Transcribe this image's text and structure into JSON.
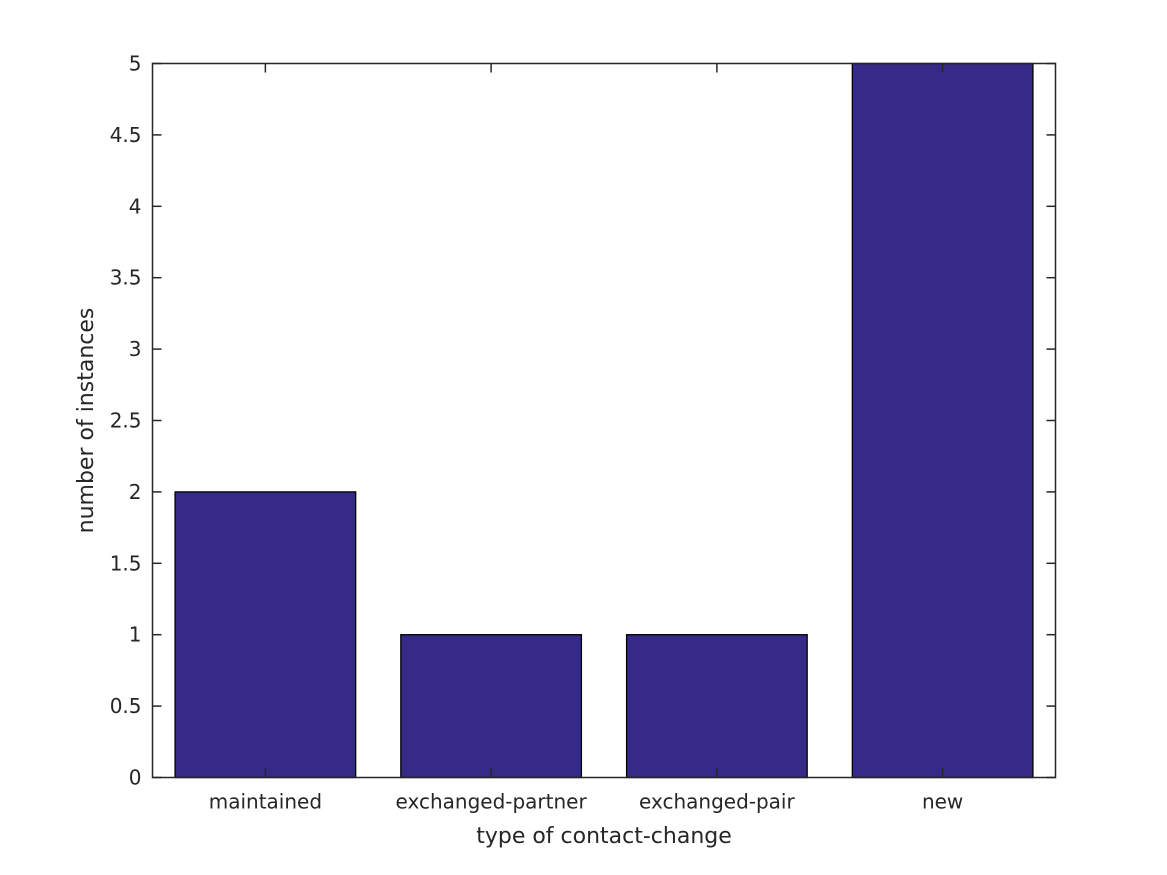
{
  "chart_data": {
    "type": "bar",
    "categories": [
      "maintained",
      "exchanged-partner",
      "exchanged-pair",
      "new"
    ],
    "values": [
      2,
      1,
      1,
      5
    ],
    "xlabel": "type of contact-change",
    "ylabel": "number of instances",
    "ylim": [
      0,
      5
    ],
    "ytick_step": 0.5,
    "ytick_labels": [
      "0",
      "0.5",
      "1",
      "1.5",
      "2",
      "2.5",
      "3",
      "3.5",
      "4",
      "4.5",
      "5"
    ],
    "grid": false,
    "legend": "none",
    "box": true,
    "tick_direction": "in",
    "bar_width_fraction": 0.8,
    "colors": {
      "bar_fill": "#352a87",
      "bar_edge": "#000000",
      "axis": "#262626",
      "background": "#ffffff"
    }
  }
}
